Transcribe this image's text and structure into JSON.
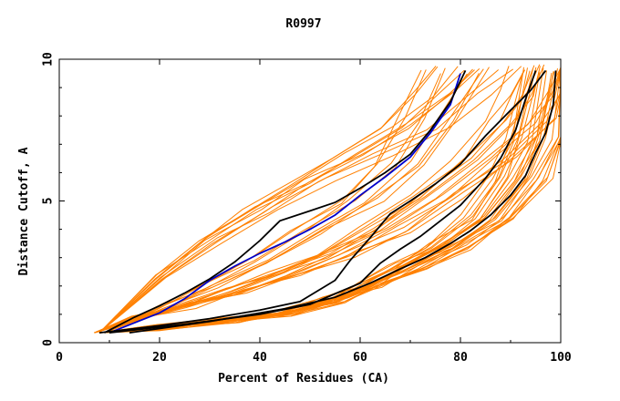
{
  "chart_data": {
    "type": "line",
    "title": "R0997",
    "xlabel": "Percent of Residues (CA)",
    "ylabel": "Distance Cutoff, A",
    "xlim": [
      0,
      100
    ],
    "ylim": [
      0,
      10
    ],
    "xticks": [
      "0",
      "20",
      "40",
      "60",
      "80",
      "100"
    ],
    "yticks": [
      "0",
      "5",
      "10"
    ],
    "grid": false,
    "colors": {
      "models": "#ff8000",
      "highlight_black": "#000000",
      "highlight_blue": "#0000cc"
    },
    "highlighted_series": [
      {
        "color": "#0000cc",
        "x": [
          10,
          15,
          20,
          25,
          30,
          35,
          40,
          45,
          50,
          55,
          60,
          65,
          70,
          74,
          78,
          80
        ],
        "y": [
          0.35,
          0.7,
          1.05,
          1.55,
          2.2,
          2.7,
          3.15,
          3.55,
          4.0,
          4.5,
          5.2,
          5.85,
          6.55,
          7.4,
          8.4,
          9.5
        ]
      },
      {
        "color": "#000000",
        "x": [
          9,
          15,
          20,
          25,
          30,
          35,
          40,
          44,
          50,
          55,
          60,
          65,
          70,
          74,
          78,
          81
        ],
        "y": [
          0.35,
          0.9,
          1.3,
          1.75,
          2.25,
          2.85,
          3.6,
          4.3,
          4.65,
          4.95,
          5.45,
          6.0,
          6.65,
          7.5,
          8.5,
          9.6
        ]
      },
      {
        "color": "#000000",
        "x": [
          8,
          20,
          30,
          40,
          48,
          55,
          58,
          62,
          66,
          70,
          75,
          80,
          85,
          90,
          94,
          97
        ],
        "y": [
          0.35,
          0.6,
          0.85,
          1.15,
          1.45,
          2.2,
          2.9,
          3.7,
          4.55,
          5.0,
          5.6,
          6.3,
          7.3,
          8.2,
          8.9,
          9.6
        ]
      },
      {
        "color": "#000000",
        "x": [
          10,
          25,
          40,
          50,
          56,
          60,
          64,
          68,
          72,
          76,
          80,
          85,
          88,
          91,
          93,
          95
        ],
        "y": [
          0.35,
          0.65,
          1.0,
          1.35,
          1.8,
          2.1,
          2.8,
          3.3,
          3.75,
          4.3,
          4.85,
          5.8,
          6.5,
          7.5,
          8.6,
          9.6
        ]
      },
      {
        "color": "#000000",
        "x": [
          14,
          30,
          45,
          55,
          62,
          68,
          73,
          78,
          82,
          86,
          90,
          93,
          95,
          97,
          98.5,
          99
        ],
        "y": [
          0.35,
          0.75,
          1.2,
          1.6,
          2.1,
          2.6,
          3.0,
          3.5,
          3.95,
          4.5,
          5.2,
          5.9,
          6.7,
          7.4,
          8.4,
          9.6
        ]
      }
    ],
    "orange_bundles": [
      {
        "count": 14,
        "x": [
          7,
          15,
          25,
          35,
          45,
          55,
          65,
          75,
          85,
          92,
          96,
          99
        ],
        "y": [
          0.35,
          0.85,
          1.3,
          1.8,
          2.4,
          3.1,
          4.0,
          5.2,
          6.5,
          7.8,
          8.8,
          9.7
        ]
      },
      {
        "count": 24,
        "x": [
          8,
          20,
          35,
          45,
          55,
          62,
          70,
          78,
          86,
          92,
          96,
          99.5
        ],
        "y": [
          0.35,
          0.55,
          0.8,
          1.05,
          1.5,
          2.0,
          2.7,
          3.4,
          4.4,
          5.8,
          7.2,
          9.6
        ]
      },
      {
        "count": 10,
        "x": [
          8,
          20,
          30,
          40,
          50,
          60,
          70,
          78,
          83
        ],
        "y": [
          0.35,
          2.3,
          3.6,
          4.7,
          5.7,
          6.6,
          7.6,
          8.8,
          9.7
        ]
      },
      {
        "count": 8,
        "x": [
          9,
          20,
          30,
          40,
          50,
          60,
          68,
          74,
          79
        ],
        "y": [
          0.35,
          1.2,
          2.0,
          2.9,
          3.9,
          5.0,
          6.3,
          7.8,
          9.6
        ]
      }
    ]
  }
}
